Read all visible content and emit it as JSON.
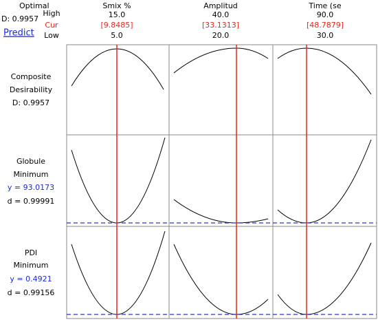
{
  "header": {
    "optimal": "Optimal",
    "d": "D: 0.9957",
    "predict": "Predict",
    "high": "High",
    "cur": "Cur",
    "low": "Low"
  },
  "factors": [
    {
      "name": "Smix %",
      "high": "15.0",
      "cur": "[9.8485]",
      "low": "5.0"
    },
    {
      "name": "Amplitud",
      "high": "40.0",
      "cur": "[33.1313]",
      "low": "20.0"
    },
    {
      "name": "Time (se",
      "high": "90.0",
      "cur": "[48.7879]",
      "low": "30.0"
    }
  ],
  "responses": [
    {
      "lines": [
        "Composite",
        "Desirability",
        "D: 0.9957"
      ]
    },
    {
      "lines": [
        "Globule",
        "Minimum",
        "y = 93.0173",
        "d = 0.99991"
      ]
    },
    {
      "lines": [
        "PDI",
        "Minimum",
        "y = 0.4921",
        "d = 0.99156"
      ]
    }
  ]
}
